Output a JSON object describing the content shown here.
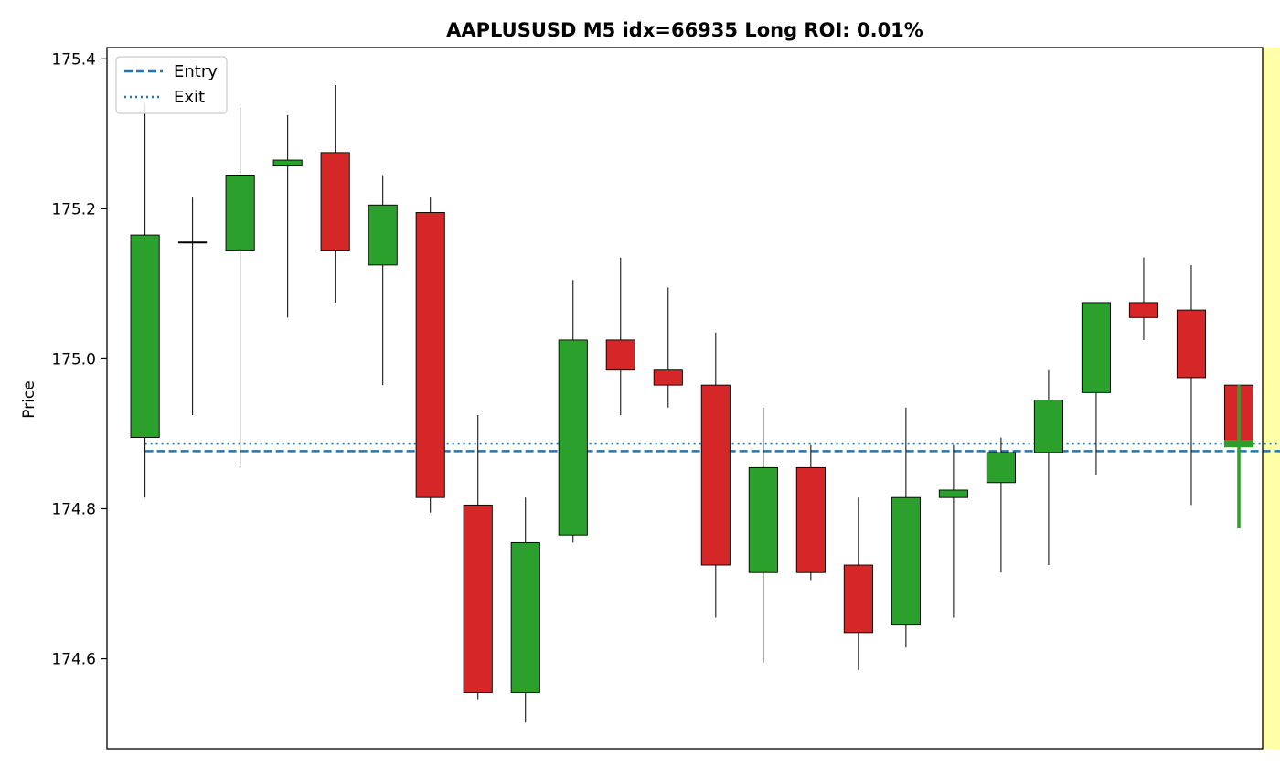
{
  "chart_data": {
    "type": "candlestick",
    "title": "AAPLUSUSD M5  idx=66935   Long ROI: 0.01%",
    "xlabel": "",
    "ylabel": "Price",
    "ylim": [
      174.48,
      175.415
    ],
    "yticks": [
      174.6,
      174.8,
      175.0,
      175.2,
      175.4
    ],
    "ytick_labels": [
      "174.6",
      "174.8",
      "175.0",
      "175.2",
      "175.4"
    ],
    "xlim": [
      -0.8,
      23.5
    ],
    "grid": false,
    "legend": {
      "placement": "top-left",
      "entries": [
        {
          "label": "Entry",
          "style": "dashed"
        },
        {
          "label": "Exit",
          "style": "dotted"
        }
      ]
    },
    "entry_price": 174.877,
    "exit_price": 174.887,
    "line_color": "#1f77b4",
    "up_color": "#2ca02c",
    "down_color": "#d62728",
    "highlight": {
      "index": 23,
      "color": "#ffff99"
    },
    "candles": [
      {
        "open": 174.895,
        "high": 175.34,
        "low": 174.815,
        "close": 175.165
      },
      {
        "open": 175.155,
        "high": 175.215,
        "low": 174.925,
        "close": 175.155
      },
      {
        "open": 175.145,
        "high": 175.335,
        "low": 174.855,
        "close": 175.245
      },
      {
        "open": 175.257,
        "high": 175.325,
        "low": 175.055,
        "close": 175.265
      },
      {
        "open": 175.275,
        "high": 175.365,
        "low": 175.075,
        "close": 175.145
      },
      {
        "open": 175.125,
        "high": 175.245,
        "low": 174.965,
        "close": 175.205
      },
      {
        "open": 175.195,
        "high": 175.215,
        "low": 174.795,
        "close": 174.815
      },
      {
        "open": 174.805,
        "high": 174.925,
        "low": 174.545,
        "close": 174.555
      },
      {
        "open": 174.555,
        "high": 174.815,
        "low": 174.515,
        "close": 174.755
      },
      {
        "open": 174.765,
        "high": 175.105,
        "low": 174.755,
        "close": 175.025
      },
      {
        "open": 175.025,
        "high": 175.135,
        "low": 174.925,
        "close": 174.985
      },
      {
        "open": 174.985,
        "high": 175.095,
        "low": 174.935,
        "close": 174.965
      },
      {
        "open": 174.965,
        "high": 175.035,
        "low": 174.655,
        "close": 174.725
      },
      {
        "open": 174.715,
        "high": 174.935,
        "low": 174.595,
        "close": 174.855
      },
      {
        "open": 174.855,
        "high": 174.885,
        "low": 174.705,
        "close": 174.715
      },
      {
        "open": 174.725,
        "high": 174.815,
        "low": 174.585,
        "close": 174.635
      },
      {
        "open": 174.645,
        "high": 174.935,
        "low": 174.615,
        "close": 174.815
      },
      {
        "open": 174.815,
        "high": 174.885,
        "low": 174.655,
        "close": 174.825
      },
      {
        "open": 174.835,
        "high": 174.895,
        "low": 174.715,
        "close": 174.875
      },
      {
        "open": 174.875,
        "high": 174.985,
        "low": 174.725,
        "close": 174.945
      },
      {
        "open": 174.955,
        "high": 175.075,
        "low": 174.845,
        "close": 175.075
      },
      {
        "open": 175.075,
        "high": 175.135,
        "low": 175.025,
        "close": 175.055
      },
      {
        "open": 175.065,
        "high": 175.125,
        "low": 174.805,
        "close": 174.975
      },
      {
        "open": 174.965,
        "high": 174.965,
        "low": 174.795,
        "close": 174.885
      }
    ],
    "markers": [
      {
        "index": 24,
        "open": 174.882,
        "high": 174.965,
        "low": 174.775,
        "close": 174.892
      }
    ]
  }
}
